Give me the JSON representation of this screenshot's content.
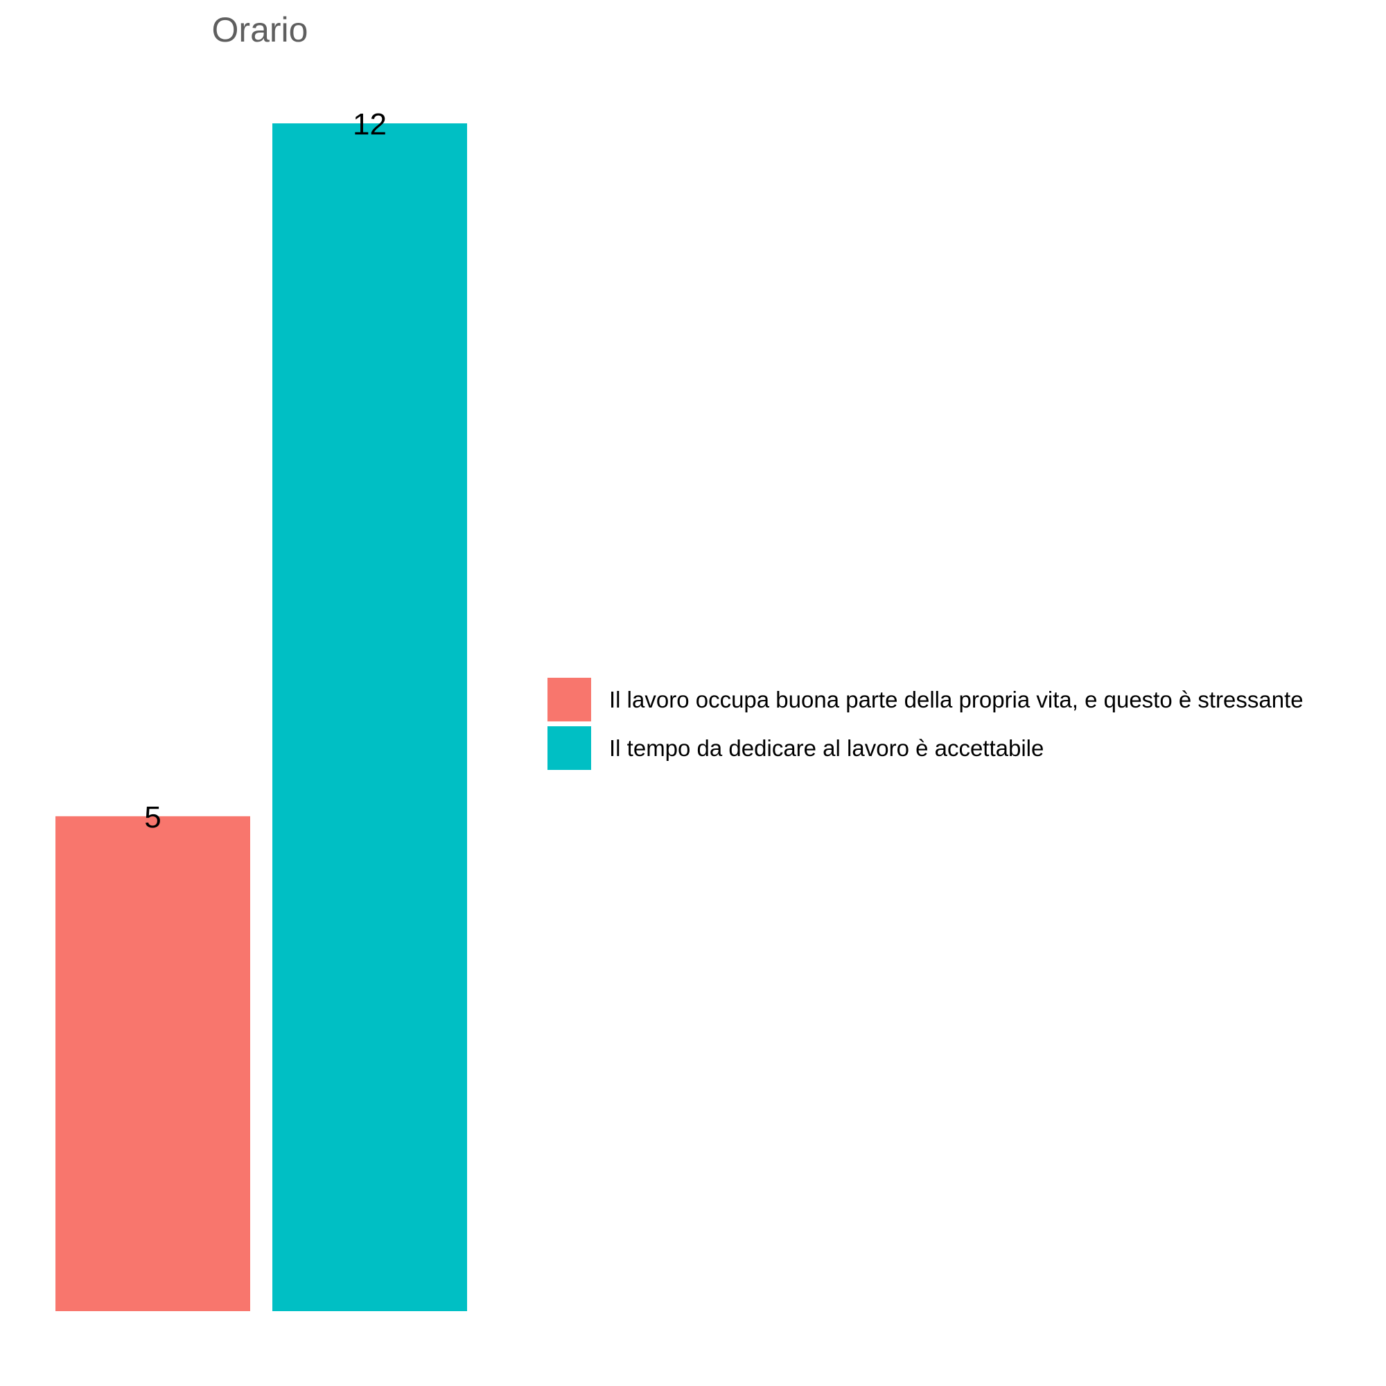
{
  "chart_data": {
    "type": "bar",
    "title": "Orario",
    "xlabel": "",
    "ylabel": "",
    "ylim": [
      0,
      12
    ],
    "grid": false,
    "legend_position": "right",
    "series": [
      {
        "name": "Il lavoro occupa buona parte della propria vita, e questo è stressante",
        "value": 5,
        "label": "5",
        "color": "#F8766D"
      },
      {
        "name": "Il tempo da dedicare al lavoro è accettabile",
        "value": 12,
        "label": "12",
        "color": "#00BFC4"
      }
    ]
  }
}
